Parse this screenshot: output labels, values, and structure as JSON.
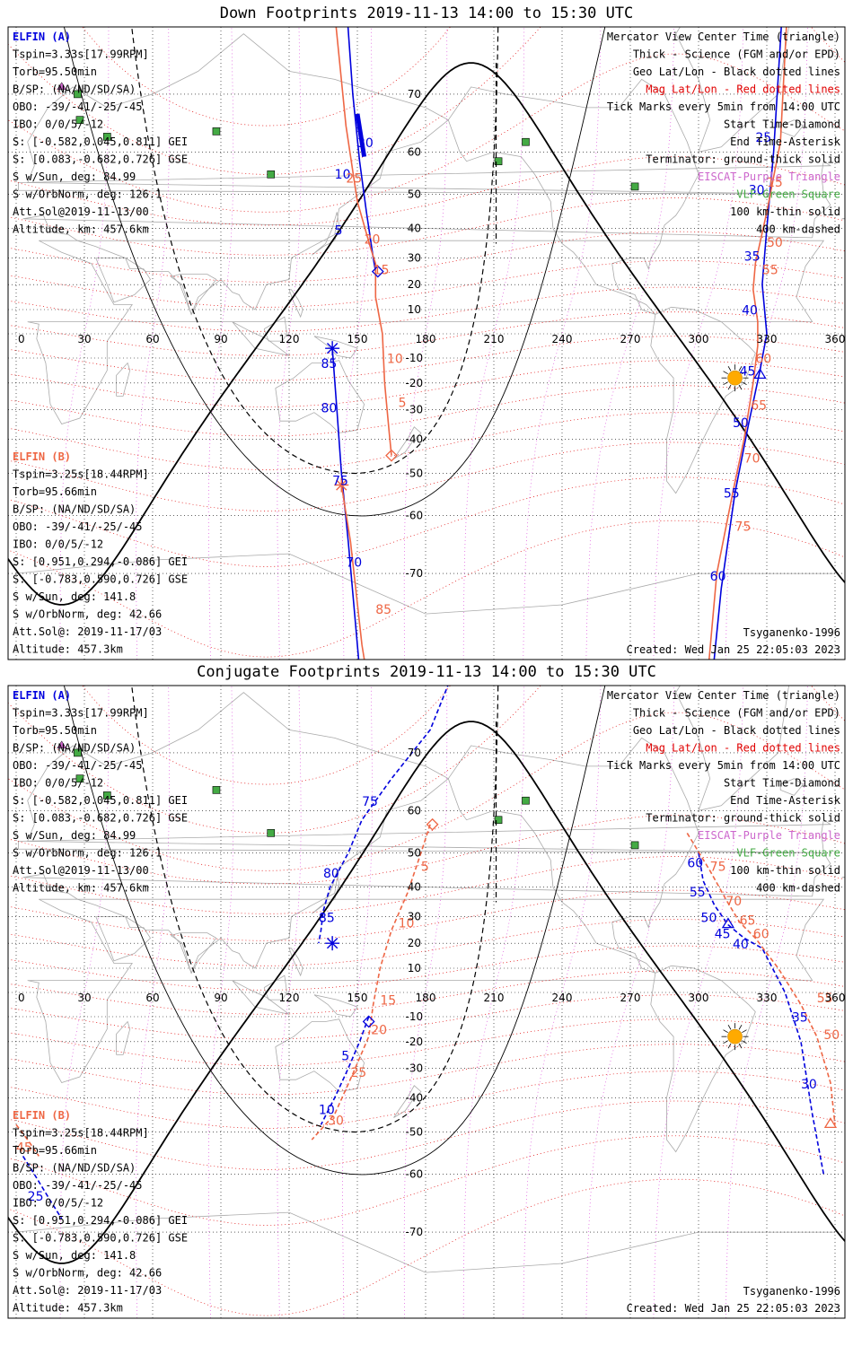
{
  "panels": [
    {
      "id": "down",
      "title": "Down Footprints 2019-11-13 14:00 to 15:30 UTC",
      "elfin_a": {
        "name": "ELFIN (A)",
        "lines": [
          "Tspin=3.33s[17.99RPM]",
          "Torb=95.50min",
          "B/SP: (NA/ND/SD/SA)",
          "OBO: -39/-41/-25/-45",
          "IBO: 0/0/5/-12",
          "S: [-0.582,0.045,0.811] GEI",
          "S: [0.083,-0.682,0.726] GSE",
          "S w/Sun, deg: 84.99",
          "S w/OrbNorm, deg: 126.1",
          "Att.Sol@2019-11-13/00",
          "Altitude, km: 457.6km"
        ]
      },
      "elfin_b": {
        "name": "ELFIN (B)",
        "lines": [
          "Tspin=3.25s[18.44RPM]",
          "Torb=95.66min",
          "B/SP: (NA/ND/SD/SA)",
          "OBO: -39/-41/-25/-45",
          "IBO: 0/0/5/-12",
          "S: [0.951,0.294,-0.086] GEI",
          "S: [-0.783,0.590,0.726] GSE",
          "S w/Sun, deg: 141.8",
          "S w/OrbNorm, deg: 42.66",
          "Att.Sol@: 2019-11-17/03",
          "Altitude: 457.3km"
        ]
      },
      "legend": [
        {
          "text": "Mercator View Center Time (triangle)",
          "color": "#000000"
        },
        {
          "text": "Thick - Science (FGM and/or EPD)",
          "color": "#000000"
        },
        {
          "text": "Geo Lat/Lon - Black dotted lines",
          "color": "#000000"
        },
        {
          "text": "Mag Lat/Lon - Red dotted lines",
          "color": "#e00000"
        },
        {
          "text": "Tick Marks every 5min from 14:00 UTC",
          "color": "#000000"
        },
        {
          "text": "Start Time-Diamond",
          "color": "#000000"
        },
        {
          "text": "End Time-Asterisk",
          "color": "#000000"
        },
        {
          "text": "Terminator: ground-thick solid",
          "color": "#000000"
        },
        {
          "text": "EISCAT-Purple Triangle",
          "color": "#cc66cc"
        },
        {
          "text": "VLF-Green Square",
          "color": "#44aa44"
        },
        {
          "text": "100 km-thin solid",
          "color": "#000000"
        },
        {
          "text": "400 km-dashed",
          "color": "#000000"
        }
      ],
      "model": "Tsyganenko-1996",
      "created": "Created: Wed Jan 25 22:05:03 2023",
      "lon_labels": [
        "0",
        "30",
        "60",
        "90",
        "120",
        "150",
        "180",
        "210",
        "240",
        "270",
        "300",
        "330",
        "360"
      ],
      "lat_labels": [
        "70",
        "60",
        "50",
        "40",
        "30",
        "20",
        "10",
        "-10",
        "-20",
        "-30",
        "-40",
        "-50",
        "-60",
        "-70"
      ],
      "track_labels_a": [
        {
          "t": "30",
          "lon": 150,
          "lat": 61
        },
        {
          "t": "10",
          "lon": 140,
          "lat": 54
        },
        {
          "t": "5",
          "lon": 140,
          "lat": 38
        },
        {
          "t": "85",
          "lon": 134,
          "lat": -14
        },
        {
          "t": "80",
          "lon": 134,
          "lat": -31
        },
        {
          "t": "75",
          "lon": 139,
          "lat": -53
        },
        {
          "t": "70",
          "lon": 145,
          "lat": -69
        },
        {
          "t": "25",
          "lon": 325,
          "lat": 62
        },
        {
          "t": "30",
          "lon": 322,
          "lat": 50
        },
        {
          "t": "35",
          "lon": 320,
          "lat": 29
        },
        {
          "t": "40",
          "lon": 319,
          "lat": 8
        },
        {
          "t": "45",
          "lon": 318,
          "lat": -17
        },
        {
          "t": "50",
          "lon": 315,
          "lat": -36
        },
        {
          "t": "55",
          "lon": 311,
          "lat": -56
        },
        {
          "t": "60",
          "lon": 305,
          "lat": -71
        }
      ],
      "track_labels_b": [
        {
          "t": "25",
          "lon": 145,
          "lat": 53
        },
        {
          "t": "20",
          "lon": 153,
          "lat": 35
        },
        {
          "t": "15",
          "lon": 157,
          "lat": 24
        },
        {
          "t": "10",
          "lon": 163,
          "lat": -12
        },
        {
          "t": "5",
          "lon": 168,
          "lat": -29
        },
        {
          "t": "85",
          "lon": 158,
          "lat": -75
        },
        {
          "t": "15",
          "lon": 330,
          "lat": 52
        },
        {
          "t": "50",
          "lon": 330,
          "lat": 34
        },
        {
          "t": "55",
          "lon": 328,
          "lat": 24
        },
        {
          "t": "60",
          "lon": 325,
          "lat": -12
        },
        {
          "t": "65",
          "lon": 323,
          "lat": -30
        },
        {
          "t": "70",
          "lon": 320,
          "lat": -47
        },
        {
          "t": "75",
          "lon": 316,
          "lat": -63
        }
      ]
    },
    {
      "id": "conj",
      "title": "Conjugate Footprints 2019-11-13 14:00 to 15:30 UTC",
      "elfin_a": {
        "name": "ELFIN (A)",
        "lines": [
          "Tspin=3.33s[17.99RPM]",
          "Torb=95.50min",
          "B/SP: (NA/ND/SD/SA)",
          "OBO: -39/-41/-25/-45",
          "IBO: 0/0/5/-12",
          "S: [-0.582,0.045,0.811] GEI",
          "S: [0.083,-0.682,0.726] GSE",
          "S w/Sun, deg: 84.99",
          "S w/OrbNorm, deg: 126.1",
          "Att.Sol@2019-11-13/00",
          "Altitude, km: 457.6km"
        ]
      },
      "elfin_b": {
        "name": "ELFIN (B)",
        "lines": [
          "Tspin=3.25s[18.44RPM]",
          "Torb=95.66min",
          "B/SP: (NA/ND/SD/SA)",
          "OBO: -39/-41/-25/-45",
          "IBO: 0/0/5/-12",
          "S: [0.951,0.294,-0.086] GEI",
          "S: [-0.783,0.590,0.726] GSE",
          "S w/Sun, deg: 141.8",
          "S w/OrbNorm, deg: 42.66",
          "Att.Sol@: 2019-11-17/03",
          "Altitude: 457.3km"
        ]
      },
      "legend": [
        {
          "text": "Mercator View Center Time (triangle)",
          "color": "#000000"
        },
        {
          "text": "Thick - Science (FGM and/or EPD)",
          "color": "#000000"
        },
        {
          "text": "Geo Lat/Lon - Black dotted lines",
          "color": "#000000"
        },
        {
          "text": "Mag Lat/Lon - Red dotted lines",
          "color": "#e00000"
        },
        {
          "text": "Tick Marks every 5min from 14:00 UTC",
          "color": "#000000"
        },
        {
          "text": "Start Time-Diamond",
          "color": "#000000"
        },
        {
          "text": "End Time-Asterisk",
          "color": "#000000"
        },
        {
          "text": "Terminator: ground-thick solid",
          "color": "#000000"
        },
        {
          "text": "EISCAT-Purple Triangle",
          "color": "#cc66cc"
        },
        {
          "text": "VLF-Green Square",
          "color": "#44aa44"
        },
        {
          "text": "100 km-thin solid",
          "color": "#000000"
        },
        {
          "text": "400 km-dashed",
          "color": "#000000"
        }
      ],
      "model": "Tsyganenko-1996",
      "created": "Created: Wed Jan 25 22:05:03 2023",
      "lon_labels": [
        "0",
        "30",
        "60",
        "90",
        "120",
        "150",
        "180",
        "210",
        "240",
        "270",
        "300",
        "330",
        "360"
      ],
      "lat_labels": [
        "70",
        "60",
        "50",
        "40",
        "30",
        "20",
        "10",
        "-10",
        "-20",
        "-30",
        "-40",
        "-50",
        "-60",
        "-70"
      ],
      "track_labels_a": [
        {
          "t": "75",
          "lon": 152,
          "lat": 61
        },
        {
          "t": "80",
          "lon": 135,
          "lat": 43
        },
        {
          "t": "85",
          "lon": 133,
          "lat": 28
        },
        {
          "t": "5",
          "lon": 143,
          "lat": -27
        },
        {
          "t": "10",
          "lon": 133,
          "lat": -45
        },
        {
          "t": "60",
          "lon": 295,
          "lat": 46
        },
        {
          "t": "55",
          "lon": 296,
          "lat": 37
        },
        {
          "t": "50",
          "lon": 301,
          "lat": 28
        },
        {
          "t": "45",
          "lon": 307,
          "lat": 22
        },
        {
          "t": "40",
          "lon": 315,
          "lat": 18
        },
        {
          "t": "35",
          "lon": 341,
          "lat": -12
        },
        {
          "t": "30",
          "lon": 345,
          "lat": -37
        },
        {
          "t": "25",
          "lon": 5,
          "lat": -65
        }
      ],
      "track_labels_b": [
        {
          "t": "5",
          "lon": 178,
          "lat": 45
        },
        {
          "t": "10",
          "lon": 168,
          "lat": 26
        },
        {
          "t": "15",
          "lon": 160,
          "lat": -5
        },
        {
          "t": "20",
          "lon": 156,
          "lat": -17
        },
        {
          "t": "25",
          "lon": 147,
          "lat": -33
        },
        {
          "t": "30",
          "lon": 137,
          "lat": -48
        },
        {
          "t": "75",
          "lon": 305,
          "lat": 45
        },
        {
          "t": "70",
          "lon": 312,
          "lat": 34
        },
        {
          "t": "65",
          "lon": 318,
          "lat": 27
        },
        {
          "t": "60",
          "lon": 324,
          "lat": 22
        },
        {
          "t": "55",
          "lon": 352,
          "lat": -4
        },
        {
          "t": "50",
          "lon": 355,
          "lat": -19
        },
        {
          "t": "45",
          "lon": 0,
          "lat": -55
        }
      ]
    }
  ],
  "colors": {
    "elfin_a": "#0000dd",
    "elfin_b": "#ee6644",
    "grid_geo": "#000000",
    "grid_mag": "#e00000",
    "eiscat": "#cc66cc",
    "vlf": "#44aa44",
    "sun": "#ffaa00"
  }
}
